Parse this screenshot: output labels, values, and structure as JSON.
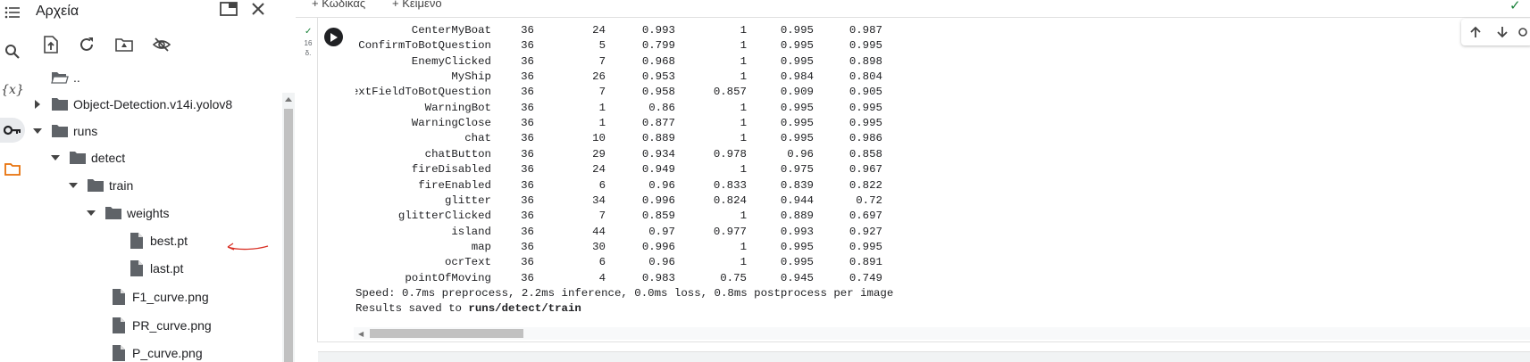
{
  "panel": {
    "title": "Αρχεία"
  },
  "topbar": {
    "add_code": "+ Κώδικας",
    "add_text": "+ Κείμενο"
  },
  "tree": [
    {
      "label": "..",
      "type": "folder-up",
      "depth": 0,
      "caret": "none"
    },
    {
      "label": "Object-Detection.v14i.yolov8",
      "type": "folder",
      "depth": 0,
      "caret": "collapsed"
    },
    {
      "label": "runs",
      "type": "folder",
      "depth": 0,
      "caret": "expanded"
    },
    {
      "label": "detect",
      "type": "folder",
      "depth": 1,
      "caret": "expanded"
    },
    {
      "label": "train",
      "type": "folder",
      "depth": 2,
      "caret": "expanded"
    },
    {
      "label": "weights",
      "type": "folder",
      "depth": 3,
      "caret": "expanded"
    },
    {
      "label": "best.pt",
      "type": "file",
      "depth": 4,
      "caret": "none"
    },
    {
      "label": "last.pt",
      "type": "file",
      "depth": 4,
      "caret": "none"
    },
    {
      "label": "F1_curve.png",
      "type": "file",
      "depth": 3,
      "caret": "none"
    },
    {
      "label": "PR_curve.png",
      "type": "file",
      "depth": 3,
      "caret": "none"
    },
    {
      "label": "P_curve.png",
      "type": "file",
      "depth": 3,
      "caret": "none"
    }
  ],
  "cell": {
    "exec_time": "16\nδ.",
    "rows": [
      [
        "CenterMyBoat",
        "36",
        "24",
        "0.993",
        "1",
        "0.995",
        "0.987"
      ],
      [
        "ConfirmToBotQuestion",
        "36",
        "5",
        "0.799",
        "1",
        "0.995",
        "0.995"
      ],
      [
        "EnemyClicked",
        "36",
        "7",
        "0.968",
        "1",
        "0.995",
        "0.898"
      ],
      [
        "MyShip",
        "36",
        "26",
        "0.953",
        "1",
        "0.984",
        "0.804"
      ],
      [
        "TextFieldToBotQuestion",
        "36",
        "7",
        "0.958",
        "0.857",
        "0.909",
        "0.905"
      ],
      [
        "WarningBot",
        "36",
        "1",
        "0.86",
        "1",
        "0.995",
        "0.995"
      ],
      [
        "WarningClose",
        "36",
        "1",
        "0.877",
        "1",
        "0.995",
        "0.995"
      ],
      [
        "chat",
        "36",
        "10",
        "0.889",
        "1",
        "0.995",
        "0.986"
      ],
      [
        "chatButton",
        "36",
        "29",
        "0.934",
        "0.978",
        "0.96",
        "0.858"
      ],
      [
        "fireDisabled",
        "36",
        "24",
        "0.949",
        "1",
        "0.975",
        "0.967"
      ],
      [
        "fireEnabled",
        "36",
        "6",
        "0.96",
        "0.833",
        "0.839",
        "0.822"
      ],
      [
        "glitter",
        "36",
        "34",
        "0.996",
        "0.824",
        "0.944",
        "0.72"
      ],
      [
        "glitterClicked",
        "36",
        "7",
        "0.859",
        "1",
        "0.889",
        "0.697"
      ],
      [
        "island",
        "36",
        "44",
        "0.97",
        "0.977",
        "0.993",
        "0.927"
      ],
      [
        "map",
        "36",
        "30",
        "0.996",
        "1",
        "0.995",
        "0.995"
      ],
      [
        "ocrText",
        "36",
        "6",
        "0.96",
        "1",
        "0.995",
        "0.891"
      ],
      [
        "pointOfMoving",
        "36",
        "4",
        "0.983",
        "0.75",
        "0.945",
        "0.749"
      ]
    ],
    "speed_line": "Speed: 0.7ms preprocess, 2.2ms inference, 0.0ms loss, 0.8ms postprocess per image",
    "results_prefix": "Results saved to ",
    "results_path": "runs/detect/train"
  },
  "icons": {
    "menu": "menu-icon",
    "search": "search-icon",
    "variables": "variables-icon",
    "secrets": "key-icon",
    "files": "folder-icon"
  },
  "colors": {
    "accent_orange": "#e8710a",
    "success_green": "#188038",
    "annotation_red": "#d93025"
  }
}
